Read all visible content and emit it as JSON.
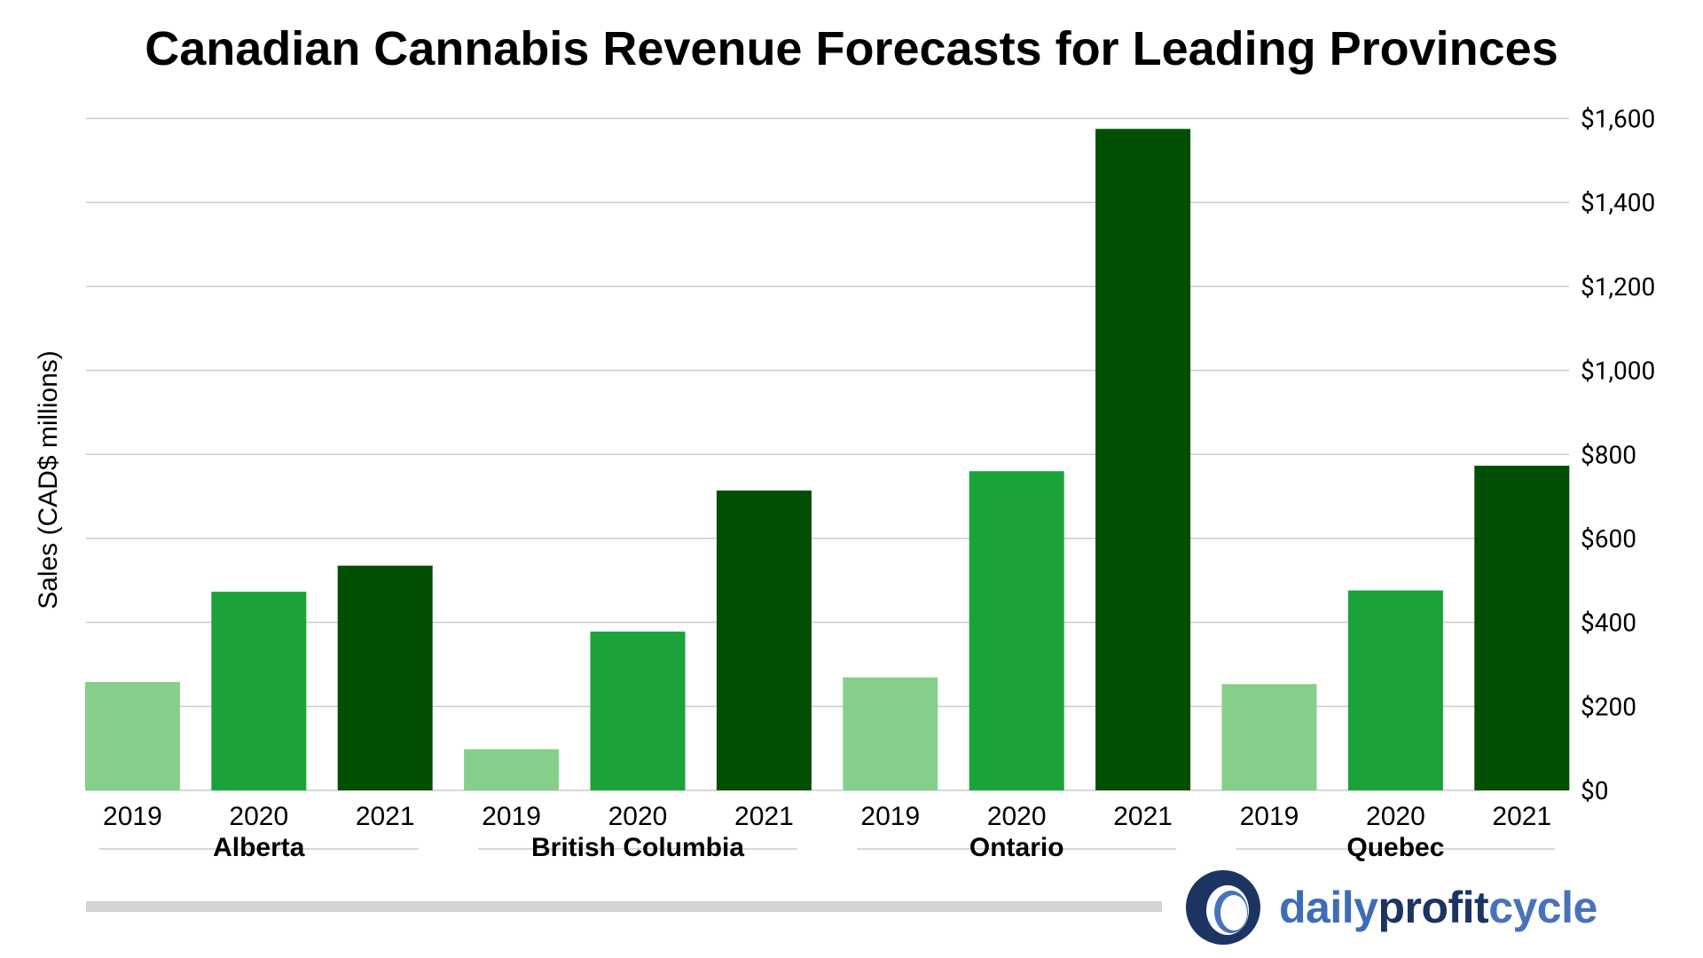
{
  "chart_data": {
    "type": "bar",
    "title": "Canadian Cannabis Revenue Forecasts for Leading Provinces",
    "ylabel": "Sales (CAD$ millions)",
    "xlabel": "",
    "ylim": [
      0,
      1600
    ],
    "yticks": [
      "$0",
      "$200",
      "$400",
      "$600",
      "$800",
      "$1,000",
      "$1,200",
      "$1,400",
      "$1,600"
    ],
    "ytick_values": [
      0,
      200,
      400,
      600,
      800,
      1000,
      1200,
      1400,
      1600
    ],
    "y_axis_side": "right",
    "grid": true,
    "groups": [
      {
        "name": "Alberta",
        "categories": [
          "2019",
          "2020",
          "2021"
        ],
        "values": [
          258,
          473,
          535
        ]
      },
      {
        "name": "British Columbia",
        "categories": [
          "2019",
          "2020",
          "2021"
        ],
        "values": [
          98,
          378,
          714
        ]
      },
      {
        "name": "Ontario",
        "categories": [
          "2019",
          "2020",
          "2021"
        ],
        "values": [
          269,
          760,
          1575
        ]
      },
      {
        "name": "Quebec",
        "categories": [
          "2019",
          "2020",
          "2021"
        ],
        "values": [
          253,
          476,
          773
        ]
      }
    ],
    "year_colors": {
      "2019": "#86cf8b",
      "2020": "#1aa33b",
      "2021": "#014f02"
    }
  },
  "logo": {
    "part1": "daily",
    "part2": "profit",
    "part3": "cycle",
    "colors": [
      "#3e6db5",
      "#1c3461",
      "#4a72b8"
    ]
  }
}
